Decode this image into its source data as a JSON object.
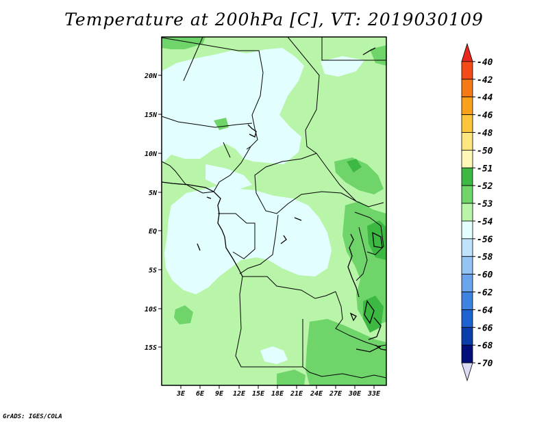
{
  "title": "Temperature at 200hPa [C], VT: 2019030109",
  "credit": "GrADS: IGES/COLA",
  "map": {
    "lat_labels": [
      "20N",
      "15N",
      "10N",
      "5N",
      "EQ",
      "5S",
      "10S",
      "15S"
    ],
    "lon_labels": [
      "3E",
      "6E",
      "9E",
      "12E",
      "15E",
      "18E",
      "21E",
      "24E",
      "27E",
      "30E",
      "33E"
    ]
  },
  "colorbar": {
    "labels": [
      "-40",
      "-42",
      "-44",
      "-46",
      "-48",
      "-50",
      "-51",
      "-52",
      "-53",
      "-54",
      "-56",
      "-58",
      "-60",
      "-62",
      "-64",
      "-66",
      "-68",
      "-70"
    ],
    "colors": [
      "#e8281f",
      "#f24a19",
      "#f57a15",
      "#f9a11a",
      "#fbc53c",
      "#fde680",
      "#fdf8b6",
      "#3db843",
      "#6fd46a",
      "#b8f5a8",
      "#e2fefe",
      "#bfe3fb",
      "#93c4f4",
      "#6aa4eb",
      "#3f83e0",
      "#1e62cf",
      "#0a3eaa",
      "#04107a",
      "#dcdcf5"
    ]
  }
}
